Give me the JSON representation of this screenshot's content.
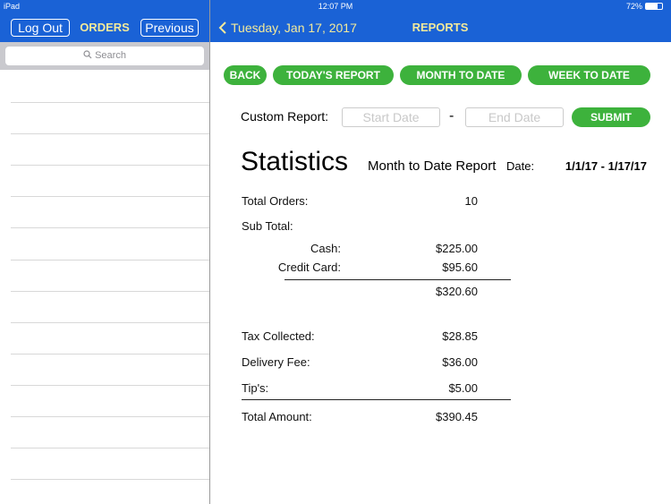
{
  "status_bar": {
    "device": "iPad",
    "time": "12:07 PM",
    "battery": "72%"
  },
  "left_nav": {
    "logout": "Log Out",
    "title": "ORDERS",
    "previous": "Previous",
    "search_placeholder": "Search"
  },
  "right_nav": {
    "back": "Tuesday, Jan 17, 2017",
    "title": "REPORTS"
  },
  "report_buttons": [
    "BACK",
    "TODAY'S REPORT",
    "MONTH TO DATE",
    "WEEK TO DATE"
  ],
  "custom_report": {
    "label": "Custom Report:",
    "start_placeholder": "Start Date",
    "separator": "-",
    "end_placeholder": "End Date",
    "submit": "SUBMIT"
  },
  "report": {
    "heading": "Statistics",
    "subtitle": "Month to Date Report",
    "date_label": "Date:",
    "date_range": "1/1/17 - 1/17/17",
    "total_orders": {
      "label": "Total Orders:",
      "value": "10"
    },
    "sub_total_label": "Sub Total:",
    "cash": {
      "label": "Cash:",
      "value": "$225.00"
    },
    "credit_card": {
      "label": "Credit Card:",
      "value": "$95.60"
    },
    "sub_total_value": "$320.60",
    "tax": {
      "label": "Tax Collected:",
      "value": "$28.85"
    },
    "delivery": {
      "label": "Delivery Fee:",
      "value": "$36.00"
    },
    "tips": {
      "label": "Tip's:",
      "value": "$5.00"
    },
    "total": {
      "label": "Total Amount:",
      "value": "$390.45"
    }
  }
}
